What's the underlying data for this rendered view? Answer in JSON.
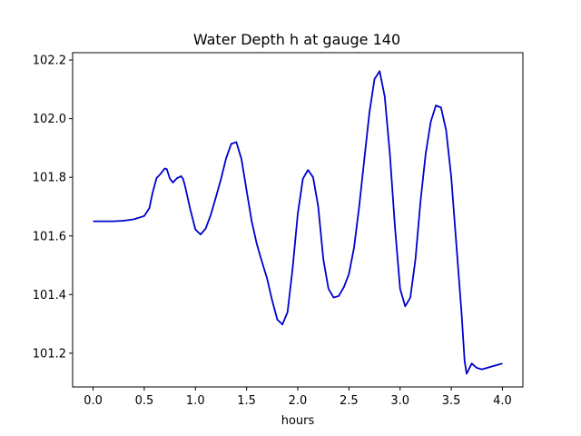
{
  "chart_data": {
    "type": "line",
    "title": "Water Depth h at gauge 140",
    "xlabel": "hours",
    "ylabel": "",
    "xlim": [
      -0.2,
      4.2
    ],
    "ylim": [
      101.085,
      102.225
    ],
    "grid": false,
    "x_ticks": [
      0.0,
      0.5,
      1.0,
      1.5,
      2.0,
      2.5,
      3.0,
      3.5,
      4.0
    ],
    "x_tick_labels": [
      "0.0",
      "0.5",
      "1.0",
      "1.5",
      "2.0",
      "2.5",
      "3.0",
      "3.5",
      "4.0"
    ],
    "y_ticks": [
      101.2,
      101.4,
      101.6,
      101.8,
      102.0,
      102.2
    ],
    "y_tick_labels": [
      "101.2",
      "101.4",
      "101.6",
      "101.8",
      "102.0",
      "102.2"
    ],
    "series": [
      {
        "color": "#0000cc",
        "x": [
          0.0,
          0.1,
          0.2,
          0.3,
          0.4,
          0.5,
          0.55,
          0.58,
          0.62,
          0.66,
          0.7,
          0.72,
          0.75,
          0.78,
          0.82,
          0.86,
          0.88,
          0.9,
          0.95,
          1.0,
          1.05,
          1.1,
          1.15,
          1.2,
          1.25,
          1.3,
          1.35,
          1.4,
          1.45,
          1.5,
          1.55,
          1.6,
          1.65,
          1.7,
          1.75,
          1.8,
          1.85,
          1.9,
          1.95,
          2.0,
          2.05,
          2.1,
          2.15,
          2.2,
          2.25,
          2.3,
          2.35,
          2.4,
          2.45,
          2.5,
          2.55,
          2.6,
          2.65,
          2.7,
          2.75,
          2.8,
          2.85,
          2.9,
          2.95,
          3.0,
          3.05,
          3.1,
          3.15,
          3.2,
          3.25,
          3.3,
          3.35,
          3.4,
          3.45,
          3.5,
          3.55,
          3.6,
          3.63,
          3.65,
          3.7,
          3.75,
          3.8,
          3.85,
          3.9,
          3.95,
          4.0
        ],
        "y": [
          101.65,
          101.65,
          101.65,
          101.652,
          101.657,
          101.668,
          101.695,
          101.745,
          101.797,
          101.812,
          101.83,
          101.828,
          101.796,
          101.782,
          101.797,
          101.804,
          101.794,
          101.768,
          101.69,
          101.622,
          101.605,
          101.625,
          101.672,
          101.732,
          101.794,
          101.865,
          101.914,
          101.92,
          101.862,
          101.755,
          101.65,
          101.572,
          101.512,
          101.455,
          101.38,
          101.315,
          101.298,
          101.34,
          101.49,
          101.675,
          101.795,
          101.825,
          101.8,
          101.7,
          101.52,
          101.42,
          101.39,
          101.395,
          101.425,
          101.47,
          101.56,
          101.7,
          101.86,
          102.02,
          102.135,
          102.162,
          102.075,
          101.88,
          101.63,
          101.42,
          101.36,
          101.39,
          101.52,
          101.72,
          101.88,
          101.99,
          102.045,
          102.038,
          101.96,
          101.8,
          101.57,
          101.34,
          101.175,
          101.13,
          101.165,
          101.15,
          101.145,
          101.15,
          101.155,
          101.16,
          101.165
        ]
      }
    ]
  }
}
